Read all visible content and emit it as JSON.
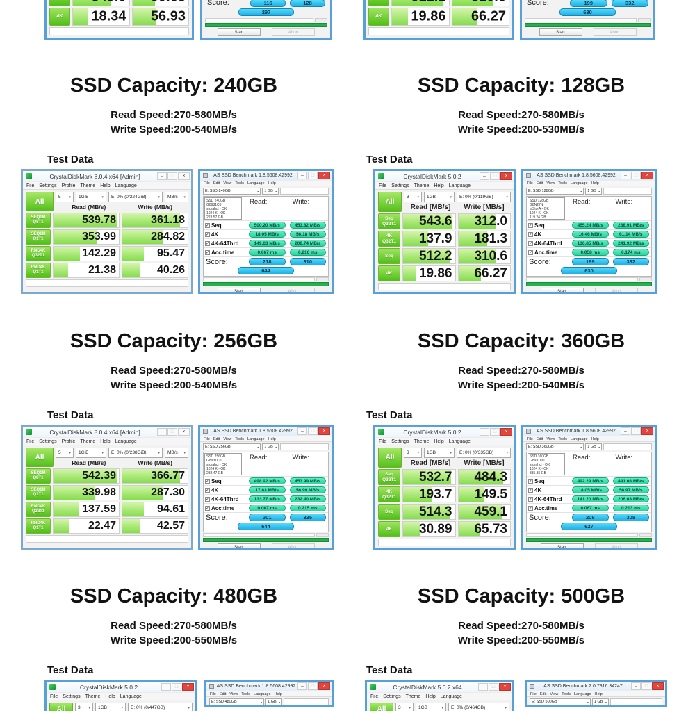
{
  "colors": {
    "window_border_blue": "#58a0d8",
    "cdm_green": "#55c41d",
    "as_teal_pill": "#2bd49e",
    "as_blue_pill": "#1fb0e5",
    "progress_green": "#23b14d",
    "close_red": "#e1453c"
  },
  "top_partials": {
    "left_cdm": {
      "rows": [
        {
          "l1": "Seq",
          "l2": "",
          "read": "349.0",
          "write": "99.63",
          "rf": 68,
          "wf": 40
        },
        {
          "l1": "4K",
          "l2": "",
          "read": "18.34",
          "write": "56.93",
          "rf": 26,
          "wf": 41
        }
      ]
    },
    "left_as": {
      "score_label": "Score:",
      "score": {
        "read": "116",
        "write": "128",
        "total": "297"
      },
      "start_label": "Start",
      "abort_label": "Abort"
    },
    "right_cdm": {
      "rows": [
        {
          "l1": "Seq",
          "l2": "",
          "read": "512.2",
          "write": "310.6",
          "rf": 90,
          "wf": 72
        },
        {
          "l1": "4K",
          "l2": "",
          "read": "19.86",
          "write": "66.27",
          "rf": 28,
          "wf": 43
        }
      ]
    },
    "right_as": {
      "score_label": "Score:",
      "score": {
        "read": "199",
        "write": "332",
        "total": "630"
      },
      "start_label": "Start",
      "abort_label": "Abort"
    }
  },
  "sections": [
    {
      "title": "SSD Capacity: 240GB",
      "read_speed": "Read Speed:270-580MB/s",
      "write_speed": "Write Speed:200-540MB/s",
      "test_data": "Test Data",
      "cdm": {
        "variant": "v8",
        "title": "CrystalDiskMark 8.0.4 x64 [Admin]",
        "menu": [
          "File",
          "Settings",
          "Profile",
          "Theme",
          "Help",
          "Language"
        ],
        "all_label": "All",
        "dropdowns": [
          "5",
          "1GiB",
          "E: 0% (0/224GiB)",
          "MB/s"
        ],
        "read_header": "Read (MB/s)",
        "write_header": "Write (MB/s)",
        "rows": [
          {
            "l1": "SEQ1M",
            "l2": "Q8T1",
            "read": "539.78",
            "write": "361.18",
            "rf": 97,
            "wf": 88
          },
          {
            "l1": "SEQ1M",
            "l2": "Q1T1",
            "read": "353.99",
            "write": "284.82",
            "rf": 66,
            "wf": 62
          },
          {
            "l1": "RND4K",
            "l2": "Q32T1",
            "read": "142.29",
            "write": "95.47",
            "rf": 40,
            "wf": 33
          },
          {
            "l1": "RND4K",
            "l2": "Q1T1",
            "read": "21.38",
            "write": "40.26",
            "rf": 22,
            "wf": 27
          }
        ]
      },
      "as_ssd": {
        "title": "AS SSD Benchmark 1.8.5608.42992",
        "menu": [
          "File",
          "Edit",
          "View",
          "Tools",
          "Language",
          "Help"
        ],
        "drive": "E: SSD 240GB",
        "size": "1 GB",
        "info": [
          "SSD 240GB",
          "G8931C0",
          "storahci - OK",
          "1024 K - OK",
          "223.57 GB"
        ],
        "read_header": "Read:",
        "write_header": "Write:",
        "rows": [
          {
            "label": "Seq",
            "read": "500.20 MB/s",
            "write": "453.82 MB/s"
          },
          {
            "label": "4K",
            "read": "18.05 MB/s",
            "write": "56.18 MB/s"
          },
          {
            "label": "4K-64Thrd",
            "read": "149.63 MB/s",
            "write": "208.74 MB/s"
          },
          {
            "label": "Acc.time",
            "read": "0.067 ms",
            "write": "0.210 ms"
          }
        ],
        "score_label": "Score:",
        "score": {
          "read": "218",
          "write": "310",
          "total": "644"
        },
        "start_label": "Start",
        "abort_label": "Abort"
      }
    },
    {
      "title": "SSD Capacity: 128GB",
      "read_speed": "Read Speed:270-580MB/s",
      "write_speed": "Write Speed:200-530MB/s",
      "test_data": "Test Data",
      "cdm": {
        "variant": "v5",
        "title": "CrystalDiskMark 5.0.2",
        "menu": [
          "File",
          "Settings",
          "Theme",
          "Help",
          "Language"
        ],
        "all_label": "All",
        "dropdowns": [
          "3",
          "1GB",
          "E: 0% (0/119GB)"
        ],
        "read_header": "Read [MB/s]",
        "write_header": "Write [MB/s]",
        "rows": [
          {
            "l1": "Seq",
            "l2": "Q32T1",
            "read": "543.6",
            "write": "312.0",
            "rf": 95,
            "wf": 72
          },
          {
            "l1": "4K",
            "l2": "Q32T1",
            "read": "137.9",
            "write": "181.3",
            "rf": 48,
            "wf": 56
          },
          {
            "l1": "Seq",
            "l2": "",
            "read": "512.2",
            "write": "310.6",
            "rf": 90,
            "wf": 72
          },
          {
            "l1": "4K",
            "l2": "",
            "read": "19.86",
            "write": "66.27",
            "rf": 26,
            "wf": 43
          }
        ]
      },
      "as_ssd": {
        "title": "AS SSD Benchmark 1.8.5608.42992",
        "menu": [
          "File",
          "Edit",
          "View",
          "Tools",
          "Language",
          "Help"
        ],
        "drive": "E: SSD 128GB",
        "size": "1 GB",
        "info": [
          "SSD 128GB",
          "G8N27N",
          "iaStorA - OK",
          "1024 K - OK",
          "119.24 GB"
        ],
        "read_header": "Read:",
        "write_header": "Write:",
        "rows": [
          {
            "label": "Seq",
            "read": "455.24 MB/s",
            "write": "288.91 MB/s"
          },
          {
            "label": "4K",
            "read": "16.46 MB/s",
            "write": "61.14 MB/s"
          },
          {
            "label": "4K-64Thrd",
            "read": "136.85 MB/s",
            "write": "241.92 MB/s"
          },
          {
            "label": "Acc.time",
            "read": "0.058 ms",
            "write": "0.174 ms"
          }
        ],
        "score_label": "Score:",
        "score": {
          "read": "199",
          "write": "332",
          "total": "630"
        },
        "start_label": "Start",
        "abort_label": "Abort"
      }
    },
    {
      "title": "SSD Capacity: 256GB",
      "read_speed": "Read Speed:270-580MB/s",
      "write_speed": "Write Speed:200-540MB/s",
      "test_data": "Test Data",
      "cdm": {
        "variant": "v8",
        "title": "CrystalDiskMark 8.0.4 x64 [Admin]",
        "menu": [
          "File",
          "Settings",
          "Profile",
          "Theme",
          "Help",
          "Language"
        ],
        "all_label": "All",
        "dropdowns": [
          "5",
          "1GiB",
          "E: 0% (0/238GiB)",
          "MB/s"
        ],
        "read_header": "Read (MB/s)",
        "write_header": "Write (MB/s)",
        "rows": [
          {
            "l1": "SEQ1M",
            "l2": "Q8T1",
            "read": "542.39",
            "write": "366.77",
            "rf": 97,
            "wf": 88
          },
          {
            "l1": "SEQ1M",
            "l2": "Q1T1",
            "read": "339.98",
            "write": "287.30",
            "rf": 64,
            "wf": 62
          },
          {
            "l1": "RND4K",
            "l2": "Q32T1",
            "read": "137.59",
            "write": "94.61",
            "rf": 39,
            "wf": 33
          },
          {
            "l1": "RND4K",
            "l2": "Q1T1",
            "read": "22.47",
            "write": "42.57",
            "rf": 23,
            "wf": 28
          }
        ]
      },
      "as_ssd": {
        "title": "AS SSD Benchmark 1.8.5608.42992",
        "menu": [
          "File",
          "Edit",
          "View",
          "Tools",
          "Language",
          "Help"
        ],
        "drive": "E: SSD 256GB",
        "size": "1 GB",
        "info": [
          "SSD 256GB",
          "G8931C0",
          "storahci - OK",
          "1024 K - OK",
          "238.47 GB"
        ],
        "read_header": "Read:",
        "write_header": "Write:",
        "rows": [
          {
            "label": "Seq",
            "read": "498.92 MB/s",
            "write": "453.99 MB/s"
          },
          {
            "label": "4K",
            "read": "17.83 MB/s",
            "write": "56.99 MB/s"
          },
          {
            "label": "4K-64Thrd",
            "read": "133.77 MB/s",
            "write": "232.40 MB/s"
          },
          {
            "label": "Acc.time",
            "read": "0.067 ms",
            "write": "0.215 ms"
          }
        ],
        "score_label": "Score:",
        "score": {
          "read": "201",
          "write": "335",
          "total": "644"
        },
        "start_label": "Start",
        "abort_label": "Abort"
      }
    },
    {
      "title": "SSD Capacity: 360GB",
      "read_speed": "Read Speed:270-580MB/s",
      "write_speed": "Write Speed:200-540MB/s",
      "test_data": "Test Data",
      "cdm": {
        "variant": "v5",
        "title": "CrystalDiskMark 5.0.2",
        "menu": [
          "File",
          "Settings",
          "Theme",
          "Help",
          "Language"
        ],
        "all_label": "All",
        "dropdowns": [
          "3",
          "1GB",
          "E: 0% (0/335GB)"
        ],
        "read_header": "Read [MB/s]",
        "write_header": "Write [MB/s]",
        "rows": [
          {
            "l1": "Seq",
            "l2": "Q32T1",
            "read": "532.7",
            "write": "484.3",
            "rf": 93,
            "wf": 87
          },
          {
            "l1": "4K",
            "l2": "Q32T1",
            "read": "193.7",
            "write": "149.5",
            "rf": 55,
            "wf": 49
          },
          {
            "l1": "Seq",
            "l2": "",
            "read": "514.3",
            "write": "459.1",
            "rf": 91,
            "wf": 84
          },
          {
            "l1": "4K",
            "l2": "",
            "read": "30.89",
            "write": "65.73",
            "rf": 33,
            "wf": 42
          }
        ]
      },
      "as_ssd": {
        "title": "AS SSD Benchmark 1.8.5608.42992",
        "menu": [
          "File",
          "Edit",
          "View",
          "Tools",
          "Language",
          "Help"
        ],
        "drive": "E: SSD 360GB",
        "size": "1 GB",
        "info": [
          "SSD 360GB",
          "G8931D0",
          "storahci - OK",
          "1024 K - OK",
          "335.35 GB"
        ],
        "read_header": "Read:",
        "write_header": "Write:",
        "rows": [
          {
            "label": "Seq",
            "read": "492.29 MB/s",
            "write": "441.08 MB/s"
          },
          {
            "label": "4K",
            "read": "18.05 MB/s",
            "write": "56.97 MB/s"
          },
          {
            "label": "4K-64Thrd",
            "read": "141.20 MB/s",
            "write": "206.63 MB/s"
          },
          {
            "label": "Acc.time",
            "read": "0.067 ms",
            "write": "0.213 ms"
          }
        ],
        "score_label": "Score:",
        "score": {
          "read": "208",
          "write": "308",
          "total": "627"
        },
        "start_label": "Start",
        "abort_label": "Abort"
      }
    },
    {
      "title": "SSD Capacity: 480GB",
      "read_speed": "Read Speed:270-580MB/s",
      "write_speed": "Write Speed:200-550MB/s",
      "test_data": "Test Data",
      "cdm_partial": {
        "variant": "v5",
        "title": "CrystalDiskMark 5.0.2",
        "menu": [
          "File",
          "Settings",
          "Theme",
          "Help",
          "Language"
        ],
        "all_label": "All",
        "dropdowns": [
          "3",
          "1GB",
          "E: 0% (0/447GB)"
        ]
      },
      "as_partial": {
        "title": "AS SSD Benchmark 1.8.5608.42992",
        "menu": [
          "File",
          "Edit",
          "View",
          "Tools",
          "Language",
          "Help"
        ],
        "drive": "E: SSD 480GB",
        "size": "1 GB"
      }
    },
    {
      "title": "SSD Capacity: 500GB",
      "read_speed": "Read Speed:270-580MB/s",
      "write_speed": "Write Speed:200-550MB/s",
      "test_data": "Test Data",
      "cdm_partial": {
        "variant": "v5",
        "title": "CrystalDiskMark 5.0.2 x64",
        "menu": [
          "File",
          "Settings",
          "Theme",
          "Help",
          "Language"
        ],
        "all_label": "All",
        "dropdowns": [
          "3",
          "1GB",
          "E: 0% (0/464GB)"
        ]
      },
      "as_partial": {
        "title": "AS SSD Benchmark 2.0.7316.34247",
        "menu": [
          "File",
          "Edit",
          "View",
          "Tools",
          "Language",
          "Help"
        ],
        "drive": "E: SSD 500GB",
        "size": "1 GB"
      }
    }
  ]
}
